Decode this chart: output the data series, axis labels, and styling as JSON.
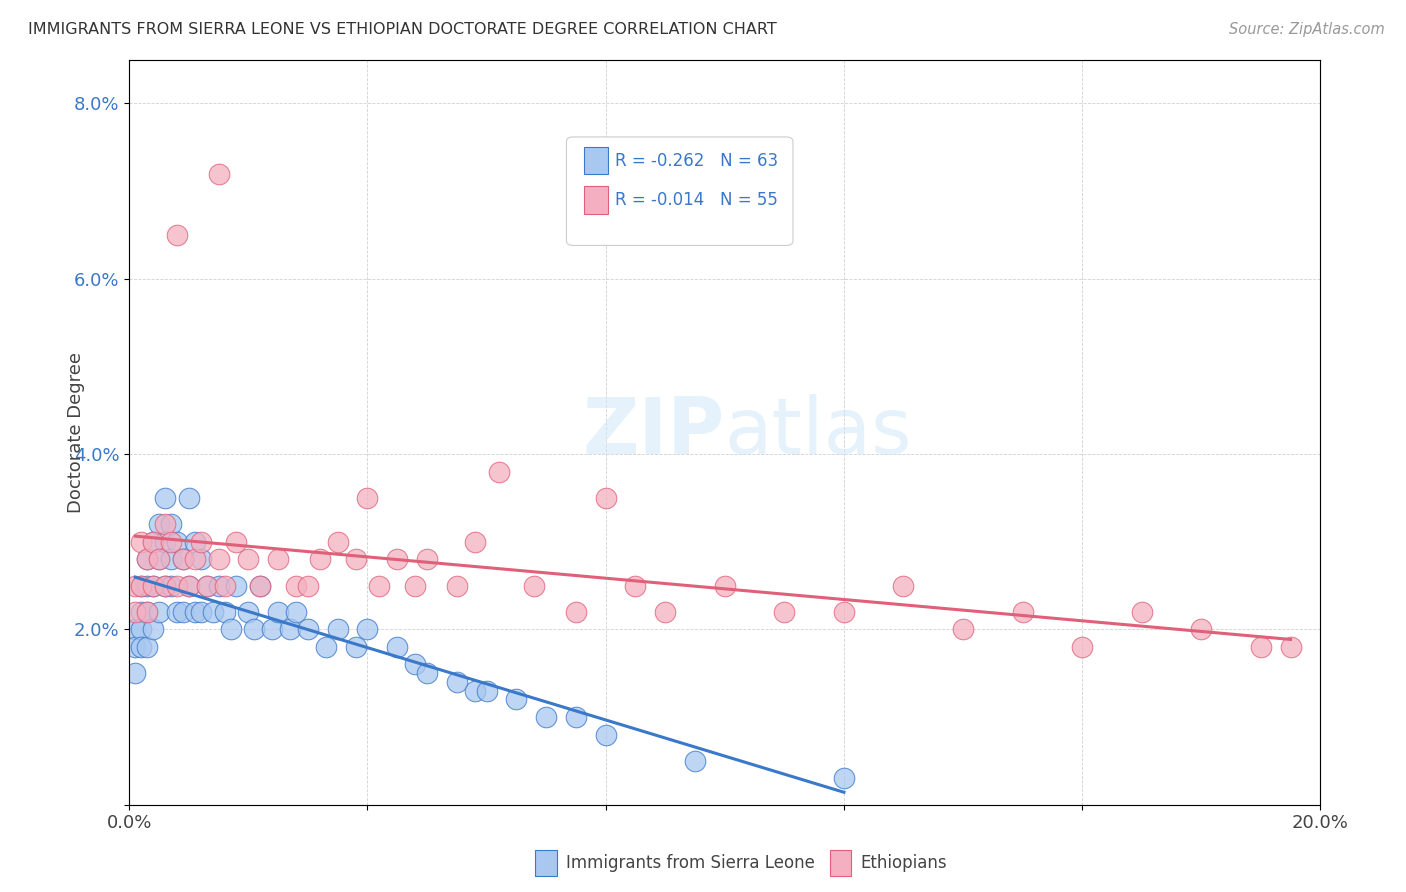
{
  "title": "IMMIGRANTS FROM SIERRA LEONE VS ETHIOPIAN DOCTORATE DEGREE CORRELATION CHART",
  "source": "Source: ZipAtlas.com",
  "ylabel": "Doctorate Degree",
  "xmin": 0.0,
  "xmax": 0.2,
  "ymin": 0.0,
  "ymax": 0.085,
  "xticks": [
    0.0,
    0.04,
    0.08,
    0.12,
    0.16,
    0.2
  ],
  "xtick_labels": [
    "0.0%",
    "",
    "",
    "",
    "",
    "20.0%"
  ],
  "yticks": [
    0.0,
    0.02,
    0.04,
    0.06,
    0.08
  ],
  "ytick_labels": [
    "",
    "2.0%",
    "4.0%",
    "6.0%",
    "8.0%"
  ],
  "color_sierra": "#a8c8f0",
  "color_ethiopian": "#f4b0c0",
  "line_color_sierra": "#3a78c9",
  "line_color_ethiopian": "#e0607a",
  "background_color": "#ffffff",
  "sierra_x": [
    0.001,
    0.001,
    0.001,
    0.002,
    0.002,
    0.002,
    0.002,
    0.003,
    0.003,
    0.003,
    0.003,
    0.004,
    0.004,
    0.004,
    0.005,
    0.005,
    0.005,
    0.006,
    0.006,
    0.006,
    0.007,
    0.007,
    0.007,
    0.008,
    0.008,
    0.009,
    0.009,
    0.01,
    0.01,
    0.011,
    0.011,
    0.012,
    0.012,
    0.013,
    0.014,
    0.015,
    0.016,
    0.017,
    0.018,
    0.02,
    0.021,
    0.022,
    0.024,
    0.025,
    0.027,
    0.028,
    0.03,
    0.033,
    0.035,
    0.038,
    0.04,
    0.045,
    0.048,
    0.05,
    0.055,
    0.058,
    0.06,
    0.065,
    0.07,
    0.075,
    0.08,
    0.095,
    0.12
  ],
  "sierra_y": [
    0.02,
    0.018,
    0.015,
    0.025,
    0.022,
    0.02,
    0.018,
    0.028,
    0.025,
    0.022,
    0.018,
    0.03,
    0.025,
    0.02,
    0.032,
    0.028,
    0.022,
    0.035,
    0.03,
    0.025,
    0.032,
    0.028,
    0.025,
    0.03,
    0.022,
    0.028,
    0.022,
    0.035,
    0.025,
    0.03,
    0.022,
    0.028,
    0.022,
    0.025,
    0.022,
    0.025,
    0.022,
    0.02,
    0.025,
    0.022,
    0.02,
    0.025,
    0.02,
    0.022,
    0.02,
    0.022,
    0.02,
    0.018,
    0.02,
    0.018,
    0.02,
    0.018,
    0.016,
    0.015,
    0.014,
    0.013,
    0.013,
    0.012,
    0.01,
    0.01,
    0.008,
    0.005,
    0.003
  ],
  "ethiopian_x": [
    0.001,
    0.001,
    0.002,
    0.002,
    0.003,
    0.003,
    0.004,
    0.004,
    0.005,
    0.006,
    0.006,
    0.007,
    0.008,
    0.009,
    0.01,
    0.011,
    0.012,
    0.013,
    0.015,
    0.016,
    0.018,
    0.02,
    0.022,
    0.025,
    0.028,
    0.03,
    0.032,
    0.035,
    0.038,
    0.04,
    0.042,
    0.045,
    0.048,
    0.05,
    0.055,
    0.058,
    0.062,
    0.068,
    0.075,
    0.08,
    0.085,
    0.09,
    0.1,
    0.11,
    0.12,
    0.13,
    0.14,
    0.15,
    0.16,
    0.17,
    0.18,
    0.19,
    0.195,
    0.008,
    0.015
  ],
  "ethiopian_y": [
    0.025,
    0.022,
    0.03,
    0.025,
    0.028,
    0.022,
    0.03,
    0.025,
    0.028,
    0.032,
    0.025,
    0.03,
    0.025,
    0.028,
    0.025,
    0.028,
    0.03,
    0.025,
    0.028,
    0.025,
    0.03,
    0.028,
    0.025,
    0.028,
    0.025,
    0.025,
    0.028,
    0.03,
    0.028,
    0.035,
    0.025,
    0.028,
    0.025,
    0.028,
    0.025,
    0.03,
    0.038,
    0.025,
    0.022,
    0.035,
    0.025,
    0.022,
    0.025,
    0.022,
    0.022,
    0.025,
    0.02,
    0.022,
    0.018,
    0.022,
    0.02,
    0.018,
    0.018,
    0.065,
    0.072
  ]
}
